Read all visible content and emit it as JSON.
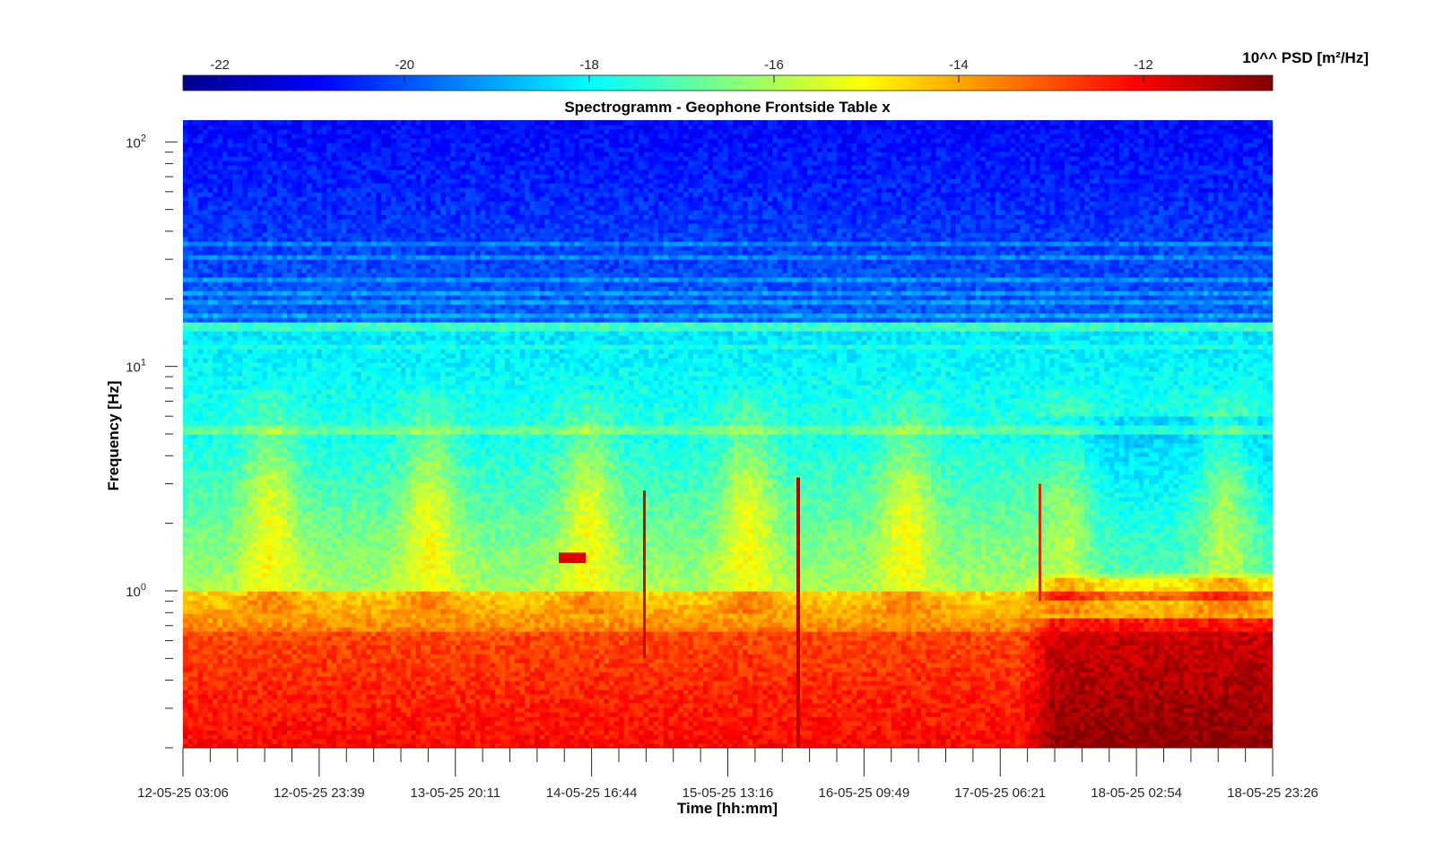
{
  "chart_data": {
    "type": "heatmap",
    "title": "Spectrogramm - Geophone Frontside Table x",
    "xlabel": "Time [hh:mm]",
    "ylabel": "Frequency [Hz]",
    "yscale": "log",
    "ylim": [
      0.2,
      125
    ],
    "x_tick_labels": [
      "12-05-25 03:06",
      "12-05-25 23:39",
      "13-05-25 20:11",
      "14-05-25 16:44",
      "15-05-25 13:16",
      "16-05-25 09:49",
      "17-05-25 06:21",
      "18-05-25 02:54",
      "18-05-25 23:26"
    ],
    "y_ticks": [
      {
        "value": 1,
        "base": "10",
        "exp": "0"
      },
      {
        "value": 10,
        "base": "10",
        "exp": "1"
      },
      {
        "value": 100,
        "base": "10",
        "exp": "2"
      }
    ],
    "colorbar": {
      "label": "10^^ PSD [m²/Hz]",
      "colormap": "jet",
      "range": [
        -22.4,
        -10.6
      ],
      "ticks": [
        -22,
        -20,
        -18,
        -16,
        -14,
        -12
      ],
      "tick_labels": [
        "-22",
        "-20",
        "-18",
        "-16",
        "-14",
        "-12"
      ],
      "placement": "top"
    },
    "features": [
      "high frequencies (>16 Hz) low power around -21 to -19",
      "horizontal bands near 5.3 Hz and 15 Hz",
      "low frequencies (<0.6 Hz) high power around -12",
      "strong dark red region from 17-05-25 06:21 onward below 0.6 Hz",
      "daily broadband activity bursts 1-5 Hz",
      "transient spike near 15-05-25 ~21:00"
    ]
  }
}
